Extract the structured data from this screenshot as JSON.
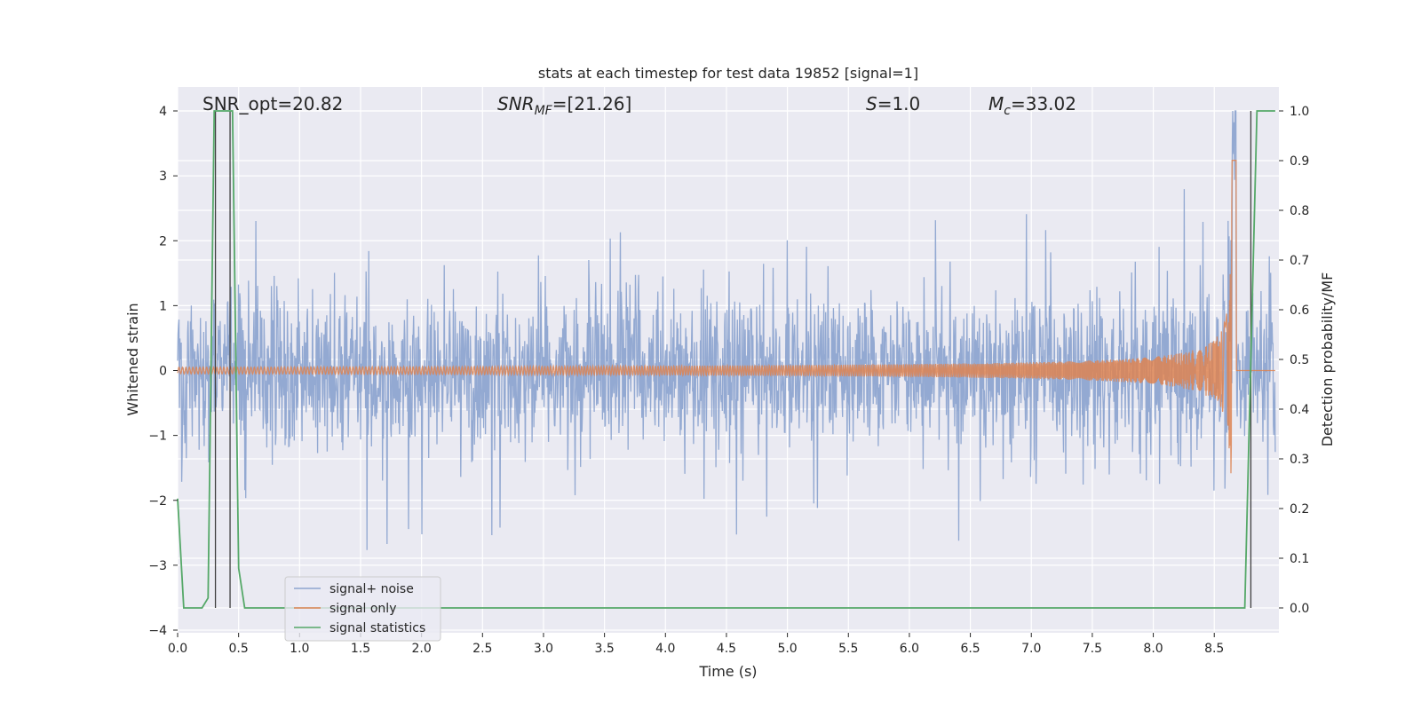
{
  "chart_data": {
    "type": "line",
    "title": "stats at each timestep for test data 19852 [signal=1]",
    "xlabel": "Time (s)",
    "ylabel": "Whitened strain",
    "y2label": "Detection probability/MF",
    "xlim": [
      0.0,
      9.0
    ],
    "ylim": [
      -4.0,
      4.0
    ],
    "y2lim": [
      -0.05,
      1.0
    ],
    "xticks": [
      "0.0",
      "0.5",
      "1.0",
      "1.5",
      "2.0",
      "2.5",
      "3.0",
      "3.5",
      "4.0",
      "4.5",
      "5.0",
      "5.5",
      "6.0",
      "6.5",
      "7.0",
      "7.5",
      "8.0",
      "8.5"
    ],
    "xtick_values": [
      0.0,
      0.5,
      1.0,
      1.5,
      2.0,
      2.5,
      3.0,
      3.5,
      4.0,
      4.5,
      5.0,
      5.5,
      6.0,
      6.5,
      7.0,
      7.5,
      8.0,
      8.5
    ],
    "yticks": [
      "−4",
      "−3",
      "−2",
      "−1",
      "0",
      "1",
      "2",
      "3",
      "4"
    ],
    "ytick_values": [
      -4,
      -3,
      -2,
      -1,
      0,
      1,
      2,
      3,
      4
    ],
    "y2ticks": [
      "0.0",
      "0.1",
      "0.2",
      "0.3",
      "0.4",
      "0.5",
      "0.6",
      "0.7",
      "0.8",
      "0.9",
      "1.0"
    ],
    "y2tick_values": [
      0.0,
      0.1,
      0.2,
      0.3,
      0.4,
      0.5,
      0.6,
      0.7,
      0.8,
      0.9,
      1.0
    ],
    "grid": true,
    "annotations": {
      "snr_opt": "SNR_opt=20.82",
      "snr_mf_main": "SNR",
      "snr_mf_sub": "MF",
      "snr_mf_value": "=[21.26]",
      "s_symbol": "S",
      "s_value": "=1.0",
      "mc_symbol": "M",
      "mc_sub": "c",
      "mc_value": "=33.02"
    },
    "series": [
      {
        "name": "signal+ noise",
        "axis": "left",
        "description": "whitened noisy strain, amplitude mostly within ±1.5 with spikes to about ±2.7",
        "color": "#8ea5d0",
        "noise_sigma": 0.55,
        "spike_max": 2.75
      },
      {
        "name": "signal only",
        "axis": "left",
        "description": "chirp waveform growing in amplitude and frequency, merger near t=8.65 s",
        "color": "#dd8452",
        "merger_time": 8.65,
        "peak_amplitude": 3.5
      },
      {
        "name": "signal statistics",
        "axis": "right",
        "color": "#55a868",
        "x": [
          0.0,
          0.05,
          0.1,
          0.15,
          0.2,
          0.25,
          0.3,
          0.35,
          0.4,
          0.45,
          0.5,
          0.55,
          0.6,
          8.0,
          8.5,
          8.7,
          8.75,
          8.8,
          8.85,
          8.9,
          8.95,
          9.0
        ],
        "y": [
          0.22,
          0.0,
          0.0,
          0.0,
          0.0,
          0.02,
          1.0,
          1.0,
          1.0,
          1.0,
          0.08,
          0.0,
          0.0,
          0.0,
          0.0,
          0.0,
          0.0,
          0.5,
          1.0,
          1.0,
          1.0,
          1.0
        ]
      }
    ],
    "event_markers_x": [
      0.31,
      0.43,
      8.8
    ],
    "event_marker_color": "#404040",
    "background_color": "#eaeaf2",
    "legend": {
      "placement": "lower-left",
      "entries": [
        "signal+ noise",
        "signal only",
        "signal statistics"
      ]
    }
  }
}
